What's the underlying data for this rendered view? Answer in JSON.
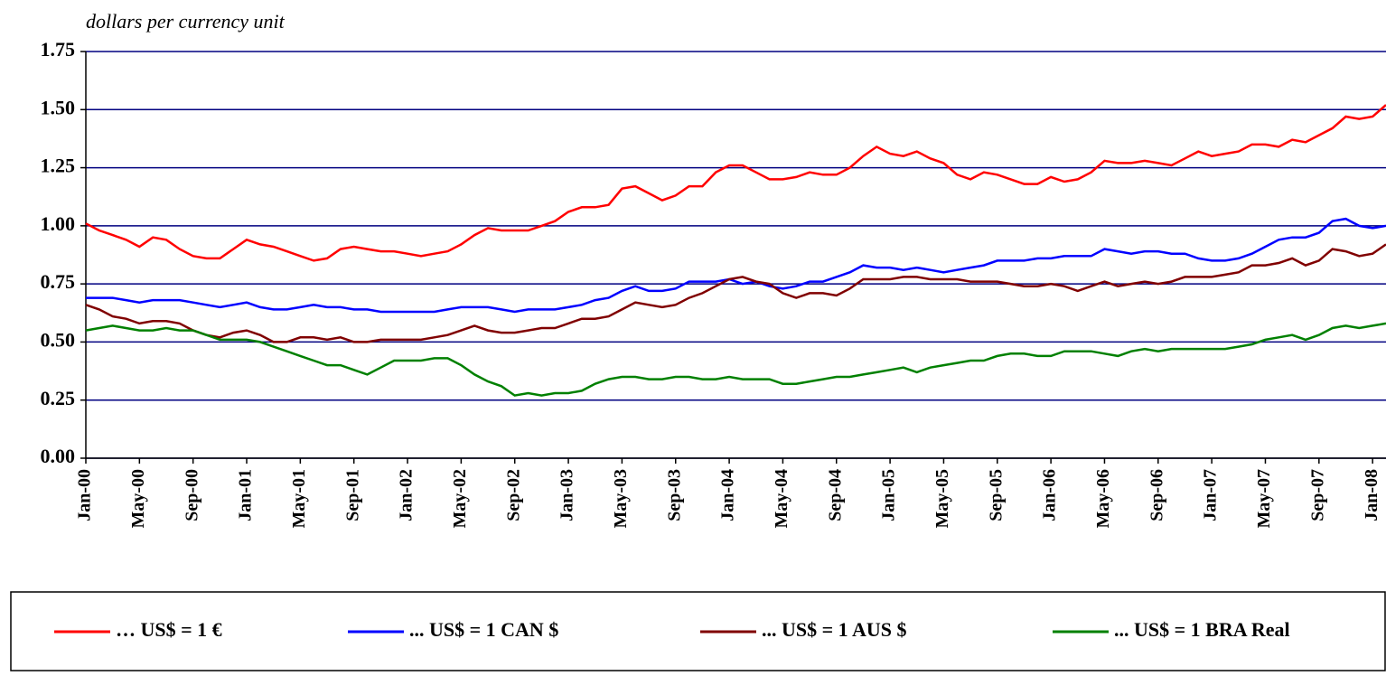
{
  "chart_data": {
    "type": "line",
    "y_label": "dollars per currency unit",
    "categories": [
      "Jan-00",
      null,
      null,
      null,
      "May-00",
      null,
      null,
      null,
      "Sep-00",
      null,
      null,
      null,
      "Jan-01",
      null,
      null,
      null,
      "May-01",
      null,
      null,
      null,
      "Sep-01",
      null,
      null,
      null,
      "Jan-02",
      null,
      null,
      null,
      "May-02",
      null,
      null,
      null,
      "Sep-02",
      null,
      null,
      null,
      "Jan-03",
      null,
      null,
      null,
      "May-03",
      null,
      null,
      null,
      "Sep-03",
      null,
      null,
      null,
      "Jan-04",
      null,
      null,
      null,
      "May-04",
      null,
      null,
      null,
      "Sep-04",
      null,
      null,
      null,
      "Jan-05",
      null,
      null,
      null,
      "May-05",
      null,
      null,
      null,
      "Sep-05",
      null,
      null,
      null,
      "Jan-06",
      null,
      null,
      null,
      "May-06",
      null,
      null,
      null,
      "Sep-06",
      null,
      null,
      null,
      "Jan-07",
      null,
      null,
      null,
      "May-07",
      null,
      null,
      null,
      "Sep-07",
      null,
      null,
      null,
      "Jan-08",
      null
    ],
    "series": [
      {
        "name": "… US$ = 1 €",
        "color": "#ff0000",
        "values": [
          1.01,
          0.98,
          0.96,
          0.94,
          0.91,
          0.95,
          0.94,
          0.9,
          0.87,
          0.86,
          0.86,
          0.9,
          0.94,
          0.92,
          0.91,
          0.89,
          0.87,
          0.85,
          0.86,
          0.9,
          0.91,
          0.9,
          0.89,
          0.89,
          0.88,
          0.87,
          0.88,
          0.89,
          0.92,
          0.96,
          0.99,
          0.98,
          0.98,
          0.98,
          1.0,
          1.02,
          1.06,
          1.08,
          1.08,
          1.09,
          1.16,
          1.17,
          1.14,
          1.11,
          1.13,
          1.17,
          1.17,
          1.23,
          1.26,
          1.26,
          1.23,
          1.2,
          1.2,
          1.21,
          1.23,
          1.22,
          1.22,
          1.25,
          1.3,
          1.34,
          1.31,
          1.3,
          1.32,
          1.29,
          1.27,
          1.22,
          1.2,
          1.23,
          1.22,
          1.2,
          1.18,
          1.18,
          1.21,
          1.19,
          1.2,
          1.23,
          1.28,
          1.27,
          1.27,
          1.28,
          1.27,
          1.26,
          1.29,
          1.32,
          1.3,
          1.31,
          1.32,
          1.35,
          1.35,
          1.34,
          1.37,
          1.36,
          1.39,
          1.42,
          1.47,
          1.46,
          1.47,
          1.52
        ]
      },
      {
        "name": "... US$ = 1 CAN $",
        "color": "#0000ff",
        "values": [
          0.69,
          0.69,
          0.69,
          0.68,
          0.67,
          0.68,
          0.68,
          0.68,
          0.67,
          0.66,
          0.65,
          0.66,
          0.67,
          0.65,
          0.64,
          0.64,
          0.65,
          0.66,
          0.65,
          0.65,
          0.64,
          0.64,
          0.63,
          0.63,
          0.63,
          0.63,
          0.63,
          0.64,
          0.65,
          0.65,
          0.65,
          0.64,
          0.63,
          0.64,
          0.64,
          0.64,
          0.65,
          0.66,
          0.68,
          0.69,
          0.72,
          0.74,
          0.72,
          0.72,
          0.73,
          0.76,
          0.76,
          0.76,
          0.77,
          0.75,
          0.76,
          0.74,
          0.73,
          0.74,
          0.76,
          0.76,
          0.78,
          0.8,
          0.83,
          0.82,
          0.82,
          0.81,
          0.82,
          0.81,
          0.8,
          0.81,
          0.82,
          0.83,
          0.85,
          0.85,
          0.85,
          0.86,
          0.86,
          0.87,
          0.87,
          0.87,
          0.9,
          0.89,
          0.88,
          0.89,
          0.89,
          0.88,
          0.88,
          0.86,
          0.85,
          0.85,
          0.86,
          0.88,
          0.91,
          0.94,
          0.95,
          0.95,
          0.97,
          1.02,
          1.03,
          1.0,
          0.99,
          1.0
        ]
      },
      {
        "name": "... US$ = 1 AUS $",
        "color": "#800000",
        "values": [
          0.66,
          0.64,
          0.61,
          0.6,
          0.58,
          0.59,
          0.59,
          0.58,
          0.55,
          0.53,
          0.52,
          0.54,
          0.55,
          0.53,
          0.5,
          0.5,
          0.52,
          0.52,
          0.51,
          0.52,
          0.5,
          0.5,
          0.51,
          0.51,
          0.51,
          0.51,
          0.52,
          0.53,
          0.55,
          0.57,
          0.55,
          0.54,
          0.54,
          0.55,
          0.56,
          0.56,
          0.58,
          0.6,
          0.6,
          0.61,
          0.64,
          0.67,
          0.66,
          0.65,
          0.66,
          0.69,
          0.71,
          0.74,
          0.77,
          0.78,
          0.76,
          0.75,
          0.71,
          0.69,
          0.71,
          0.71,
          0.7,
          0.73,
          0.77,
          0.77,
          0.77,
          0.78,
          0.78,
          0.77,
          0.77,
          0.77,
          0.76,
          0.76,
          0.76,
          0.75,
          0.74,
          0.74,
          0.75,
          0.74,
          0.72,
          0.74,
          0.76,
          0.74,
          0.75,
          0.76,
          0.75,
          0.76,
          0.78,
          0.78,
          0.78,
          0.79,
          0.8,
          0.83,
          0.83,
          0.84,
          0.86,
          0.83,
          0.85,
          0.9,
          0.89,
          0.87,
          0.88,
          0.92
        ]
      },
      {
        "name": "... US$ = 1 BRA Real",
        "color": "#008000",
        "values": [
          0.55,
          0.56,
          0.57,
          0.56,
          0.55,
          0.55,
          0.56,
          0.55,
          0.55,
          0.53,
          0.51,
          0.51,
          0.51,
          0.5,
          0.48,
          0.46,
          0.44,
          0.42,
          0.4,
          0.4,
          0.38,
          0.36,
          0.39,
          0.42,
          0.42,
          0.42,
          0.43,
          0.43,
          0.4,
          0.36,
          0.33,
          0.31,
          0.27,
          0.28,
          0.27,
          0.28,
          0.28,
          0.29,
          0.32,
          0.34,
          0.35,
          0.35,
          0.34,
          0.34,
          0.35,
          0.35,
          0.34,
          0.34,
          0.35,
          0.34,
          0.34,
          0.34,
          0.32,
          0.32,
          0.33,
          0.34,
          0.35,
          0.35,
          0.36,
          0.37,
          0.38,
          0.39,
          0.37,
          0.39,
          0.4,
          0.41,
          0.42,
          0.42,
          0.44,
          0.45,
          0.45,
          0.44,
          0.44,
          0.46,
          0.46,
          0.46,
          0.45,
          0.44,
          0.46,
          0.47,
          0.46,
          0.47,
          0.47,
          0.47,
          0.47,
          0.47,
          0.48,
          0.49,
          0.51,
          0.52,
          0.53,
          0.51,
          0.53,
          0.56,
          0.57,
          0.56,
          0.57,
          0.58
        ]
      }
    ],
    "ylim": [
      0,
      1.75
    ],
    "yticks": [
      {
        "value": 0,
        "label": "0.00"
      },
      0.25,
      {
        "value": 0.5,
        "label": "0.50"
      },
      0.75,
      {
        "value": 1,
        "label": "1.00"
      },
      1.25,
      {
        "value": 1.5,
        "label": "1.50"
      },
      1.75
    ],
    "grid": true
  }
}
